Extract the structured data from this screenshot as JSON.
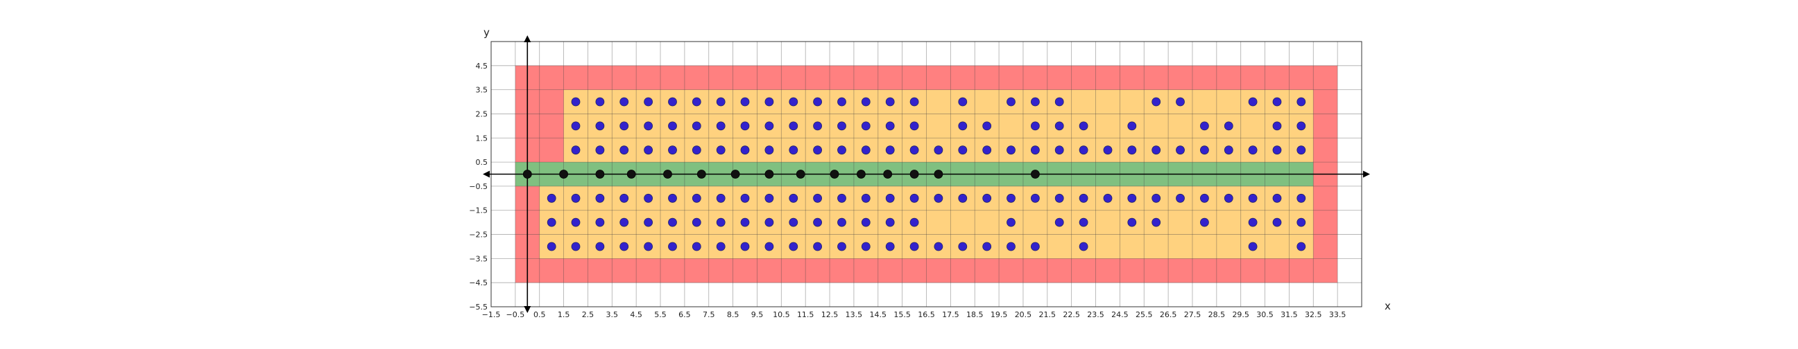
{
  "chart_data": {
    "type": "scatter",
    "title": "",
    "xlabel": "x",
    "ylabel": "y",
    "xlim": [
      -1.5,
      34.5
    ],
    "ylim": [
      -5.5,
      5.5
    ],
    "x_ticks": [
      -1.5,
      -0.5,
      0.5,
      1.5,
      2.5,
      3.5,
      4.5,
      5.5,
      6.5,
      7.5,
      8.5,
      9.5,
      10.5,
      11.5,
      12.5,
      13.5,
      14.5,
      15.5,
      16.5,
      17.5,
      18.5,
      19.5,
      20.5,
      21.5,
      22.5,
      23.5,
      24.5,
      25.5,
      26.5,
      27.5,
      28.5,
      29.5,
      30.5,
      31.5,
      32.5,
      33.5
    ],
    "y_ticks": [
      4.5,
      3.5,
      2.5,
      1.5,
      0.5,
      -0.5,
      -1.5,
      -2.5,
      -3.5,
      -4.5,
      -5.5
    ],
    "x_tick_labels": [
      "−1.5",
      "−0.5",
      "0.5",
      "1.5",
      "2.5",
      "3.5",
      "4.5",
      "5.5",
      "6.5",
      "7.5",
      "8.5",
      "9.5",
      "10.5",
      "11.5",
      "12.5",
      "13.5",
      "14.5",
      "15.5",
      "16.5",
      "17.5",
      "18.5",
      "19.5",
      "20.5",
      "21.5",
      "22.5",
      "23.5",
      "24.5",
      "25.5",
      "26.5",
      "27.5",
      "28.5",
      "29.5",
      "30.5",
      "31.5",
      "32.5",
      "33.5"
    ],
    "y_tick_labels": [
      "4.5",
      "3.5",
      "2.5",
      "1.5",
      "0.5",
      "−0.5",
      "−1.5",
      "−2.5",
      "−3.5",
      "−4.5",
      "−5.5"
    ],
    "grid": true,
    "regions": [
      {
        "color": "#ff8080",
        "polygon": [
          [
            -0.5,
            4.5
          ],
          [
            33.5,
            4.5
          ],
          [
            33.5,
            -4.5
          ],
          [
            -0.5,
            -4.5
          ]
        ]
      },
      {
        "color": "#ffd27f",
        "polygon": [
          [
            1.5,
            3.5
          ],
          [
            32.5,
            3.5
          ],
          [
            32.5,
            0.5
          ],
          [
            -0.5,
            0.5
          ],
          [
            -0.5,
            -0.5
          ],
          [
            0.5,
            -0.5
          ],
          [
            0.5,
            -3.5
          ],
          [
            32.5,
            -3.5
          ],
          [
            32.5,
            -0.5
          ],
          [
            1.5,
            -0.5
          ]
        ]
      },
      {
        "color": "#80c080",
        "polygon": [
          [
            -0.5,
            0.5
          ],
          [
            32.5,
            0.5
          ],
          [
            32.5,
            -0.5
          ],
          [
            -0.5,
            -0.5
          ]
        ]
      }
    ],
    "series": [
      {
        "color": "#3322cc",
        "edge": "#222266",
        "points": [
          [
            2,
            3
          ],
          [
            3,
            3
          ],
          [
            4,
            3
          ],
          [
            5,
            3
          ],
          [
            6,
            3
          ],
          [
            7,
            3
          ],
          [
            8,
            3
          ],
          [
            9,
            3
          ],
          [
            10,
            3
          ],
          [
            11,
            3
          ],
          [
            12,
            3
          ],
          [
            13,
            3
          ],
          [
            14,
            3
          ],
          [
            15,
            3
          ],
          [
            16,
            3
          ],
          [
            18,
            3
          ],
          [
            20,
            3
          ],
          [
            21,
            3
          ],
          [
            22,
            3
          ],
          [
            26,
            3
          ],
          [
            27,
            3
          ],
          [
            30,
            3
          ],
          [
            31,
            3
          ],
          [
            32,
            3
          ],
          [
            2,
            2
          ],
          [
            3,
            2
          ],
          [
            4,
            2
          ],
          [
            5,
            2
          ],
          [
            6,
            2
          ],
          [
            7,
            2
          ],
          [
            8,
            2
          ],
          [
            9,
            2
          ],
          [
            10,
            2
          ],
          [
            11,
            2
          ],
          [
            12,
            2
          ],
          [
            13,
            2
          ],
          [
            14,
            2
          ],
          [
            15,
            2
          ],
          [
            16,
            2
          ],
          [
            18,
            2
          ],
          [
            19,
            2
          ],
          [
            21,
            2
          ],
          [
            22,
            2
          ],
          [
            23,
            2
          ],
          [
            25,
            2
          ],
          [
            28,
            2
          ],
          [
            29,
            2
          ],
          [
            31,
            2
          ],
          [
            32,
            2
          ],
          [
            2,
            1
          ],
          [
            3,
            1
          ],
          [
            4,
            1
          ],
          [
            5,
            1
          ],
          [
            6,
            1
          ],
          [
            7,
            1
          ],
          [
            8,
            1
          ],
          [
            9,
            1
          ],
          [
            10,
            1
          ],
          [
            11,
            1
          ],
          [
            12,
            1
          ],
          [
            13,
            1
          ],
          [
            14,
            1
          ],
          [
            15,
            1
          ],
          [
            16,
            1
          ],
          [
            17,
            1
          ],
          [
            18,
            1
          ],
          [
            19,
            1
          ],
          [
            20,
            1
          ],
          [
            21,
            1
          ],
          [
            22,
            1
          ],
          [
            23,
            1
          ],
          [
            24,
            1
          ],
          [
            25,
            1
          ],
          [
            26,
            1
          ],
          [
            27,
            1
          ],
          [
            28,
            1
          ],
          [
            29,
            1
          ],
          [
            30,
            1
          ],
          [
            31,
            1
          ],
          [
            32,
            1
          ],
          [
            1,
            -1
          ],
          [
            2,
            -1
          ],
          [
            3,
            -1
          ],
          [
            4,
            -1
          ],
          [
            5,
            -1
          ],
          [
            6,
            -1
          ],
          [
            7,
            -1
          ],
          [
            8,
            -1
          ],
          [
            9,
            -1
          ],
          [
            10,
            -1
          ],
          [
            11,
            -1
          ],
          [
            12,
            -1
          ],
          [
            13,
            -1
          ],
          [
            14,
            -1
          ],
          [
            15,
            -1
          ],
          [
            16,
            -1
          ],
          [
            17,
            -1
          ],
          [
            18,
            -1
          ],
          [
            19,
            -1
          ],
          [
            20,
            -1
          ],
          [
            21,
            -1
          ],
          [
            22,
            -1
          ],
          [
            23,
            -1
          ],
          [
            24,
            -1
          ],
          [
            25,
            -1
          ],
          [
            26,
            -1
          ],
          [
            27,
            -1
          ],
          [
            28,
            -1
          ],
          [
            29,
            -1
          ],
          [
            30,
            -1
          ],
          [
            31,
            -1
          ],
          [
            32,
            -1
          ],
          [
            1,
            -2
          ],
          [
            2,
            -2
          ],
          [
            3,
            -2
          ],
          [
            4,
            -2
          ],
          [
            5,
            -2
          ],
          [
            6,
            -2
          ],
          [
            7,
            -2
          ],
          [
            8,
            -2
          ],
          [
            9,
            -2
          ],
          [
            10,
            -2
          ],
          [
            11,
            -2
          ],
          [
            12,
            -2
          ],
          [
            13,
            -2
          ],
          [
            14,
            -2
          ],
          [
            15,
            -2
          ],
          [
            16,
            -2
          ],
          [
            20,
            -2
          ],
          [
            22,
            -2
          ],
          [
            23,
            -2
          ],
          [
            25,
            -2
          ],
          [
            26,
            -2
          ],
          [
            28,
            -2
          ],
          [
            30,
            -2
          ],
          [
            31,
            -2
          ],
          [
            32,
            -2
          ],
          [
            1,
            -3
          ],
          [
            2,
            -3
          ],
          [
            3,
            -3
          ],
          [
            4,
            -3
          ],
          [
            5,
            -3
          ],
          [
            6,
            -3
          ],
          [
            7,
            -3
          ],
          [
            8,
            -3
          ],
          [
            9,
            -3
          ],
          [
            10,
            -3
          ],
          [
            11,
            -3
          ],
          [
            12,
            -3
          ],
          [
            13,
            -3
          ],
          [
            14,
            -3
          ],
          [
            15,
            -3
          ],
          [
            16,
            -3
          ],
          [
            17,
            -3
          ],
          [
            18,
            -3
          ],
          [
            19,
            -3
          ],
          [
            20,
            -3
          ],
          [
            21,
            -3
          ],
          [
            23,
            -3
          ],
          [
            30,
            -3
          ],
          [
            32,
            -3
          ]
        ]
      },
      {
        "color": "#111111",
        "edge": "#000000",
        "points": [
          [
            0,
            0
          ],
          [
            1.5,
            0
          ],
          [
            3,
            0
          ],
          [
            4.3,
            0
          ],
          [
            5.8,
            0
          ],
          [
            7.2,
            0
          ],
          [
            8.6,
            0
          ],
          [
            10,
            0
          ],
          [
            11.3,
            0
          ],
          [
            12.7,
            0
          ],
          [
            13.8,
            0
          ],
          [
            14.9,
            0
          ],
          [
            16,
            0
          ],
          [
            17,
            0
          ],
          [
            21,
            0
          ]
        ]
      }
    ]
  }
}
